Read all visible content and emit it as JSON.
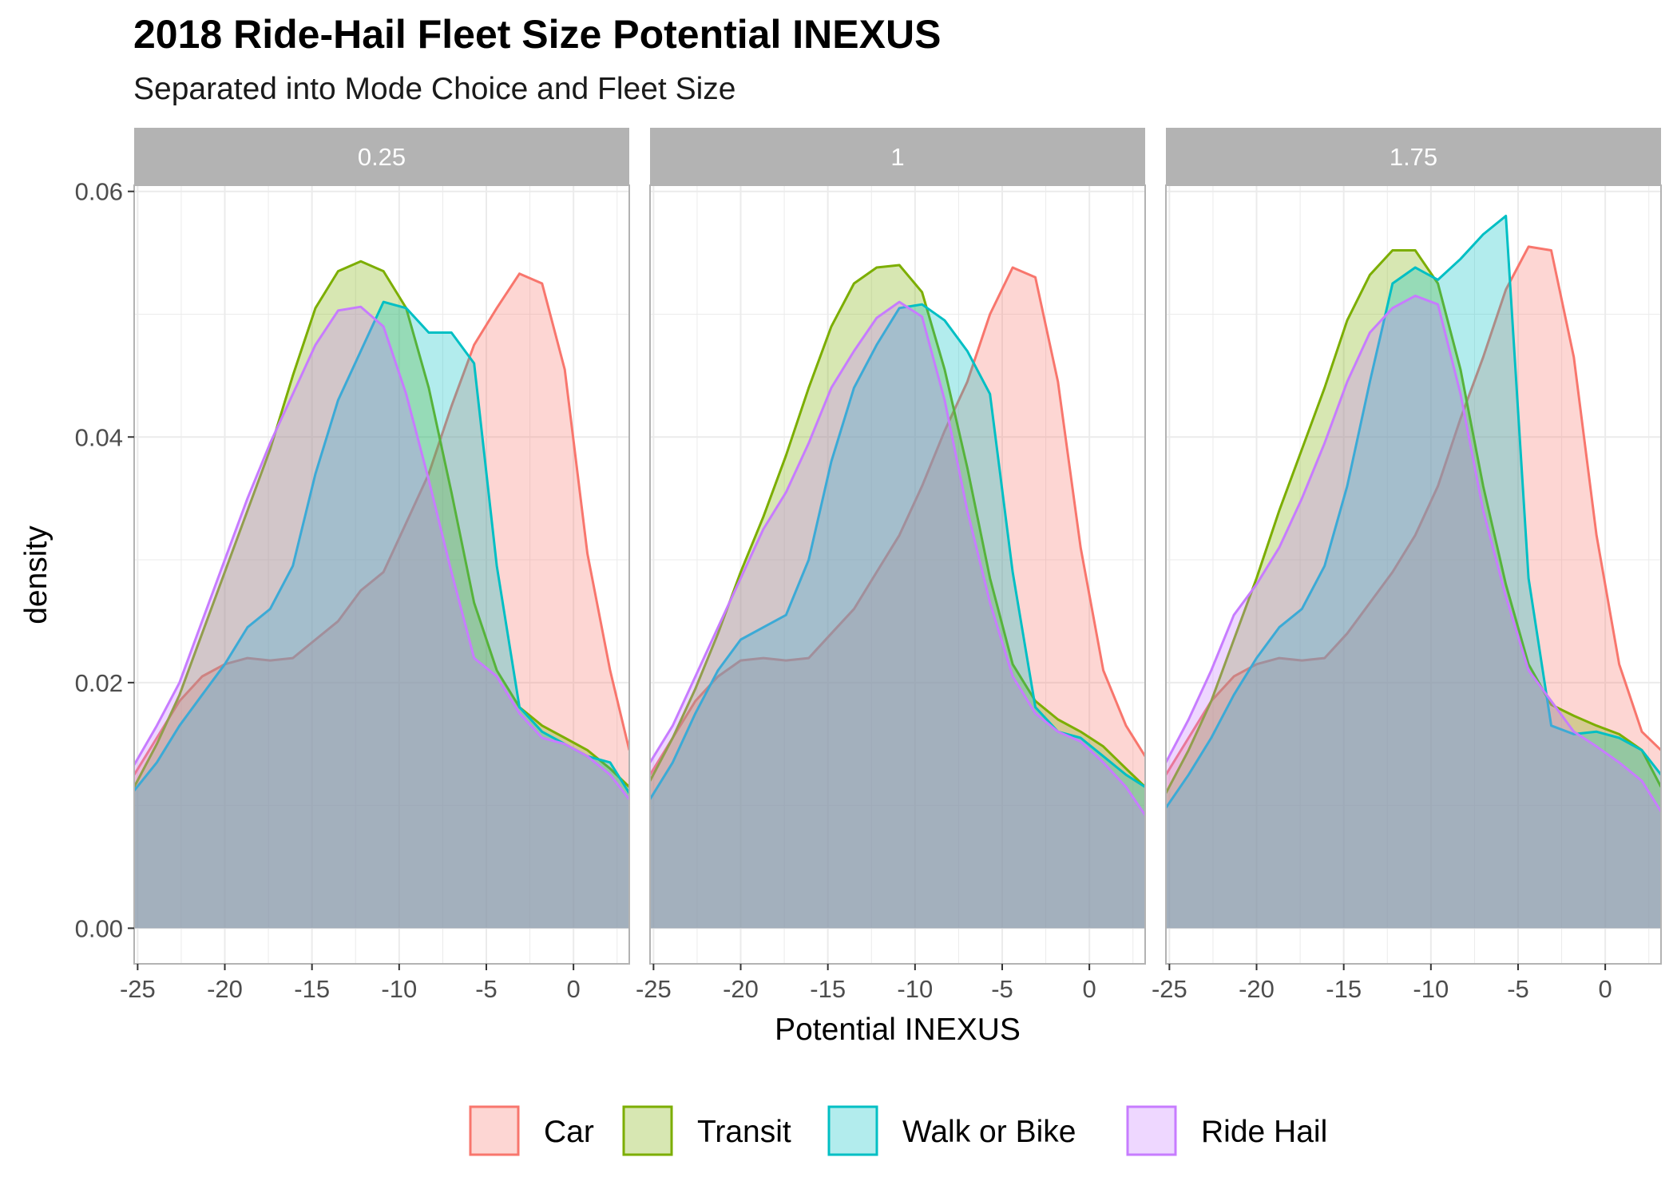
{
  "colors": {
    "Car": "#F8766D",
    "Transit": "#7CAE00",
    "Walk or Bike": "#00BFC4",
    "Ride Hail": "#C77CFF",
    "strip_bg": "#B3B3B3",
    "grid": "#EBEBEB",
    "panel_border": "#B3B3B3"
  },
  "chart_data": {
    "type": "area",
    "title": "2018 Ride-Hail Fleet Size Potential INEXUS",
    "subtitle": "Separated into Mode Choice and Fleet Size",
    "xlabel": "Potential INEXUS",
    "ylabel": "density",
    "xlim": [
      -25.2,
      3.2
    ],
    "ylim": [
      -0.0029,
      0.0605
    ],
    "x_ticks": [
      -25,
      -20,
      -15,
      -10,
      -5,
      0
    ],
    "x_tick_labels": [
      "-25",
      "-20",
      "-15",
      "-10",
      "-5",
      "0"
    ],
    "y_ticks": [
      0,
      0.02,
      0.04,
      0.06
    ],
    "y_tick_labels": [
      "0.00",
      "0.02",
      "0.04",
      "0.06"
    ],
    "legend": {
      "position": "bottom",
      "entries": [
        "Car",
        "Transit",
        "Walk or Bike",
        "Ride Hail"
      ]
    },
    "x": [
      -25.2,
      -23.9,
      -22.6,
      -21.3,
      -20.0,
      -18.7,
      -17.4,
      -16.1,
      -14.8,
      -13.5,
      -12.2,
      -10.9,
      -9.6,
      -8.3,
      -7.0,
      -5.7,
      -4.4,
      -3.1,
      -1.8,
      -0.5,
      0.8,
      2.1,
      3.2
    ],
    "panels": [
      {
        "label": "0.25",
        "series": [
          {
            "name": "Car",
            "values": [
              0.0125,
              0.0155,
              0.0185,
              0.0205,
              0.0215,
              0.022,
              0.0218,
              0.022,
              0.0235,
              0.025,
              0.0275,
              0.029,
              0.033,
              0.037,
              0.0425,
              0.0475,
              0.0505,
              0.0533,
              0.0525,
              0.0455,
              0.0305,
              0.021,
              0.0145
            ]
          },
          {
            "name": "Transit",
            "values": [
              0.0115,
              0.015,
              0.019,
              0.024,
              0.029,
              0.034,
              0.039,
              0.045,
              0.0505,
              0.0535,
              0.0543,
              0.0535,
              0.0505,
              0.044,
              0.0355,
              0.0265,
              0.021,
              0.018,
              0.0165,
              0.0155,
              0.0145,
              0.013,
              0.0115
            ]
          },
          {
            "name": "Walk or Bike",
            "values": [
              0.0112,
              0.0135,
              0.0165,
              0.019,
              0.0215,
              0.0245,
              0.026,
              0.0295,
              0.037,
              0.043,
              0.047,
              0.051,
              0.0505,
              0.0485,
              0.0485,
              0.046,
              0.0295,
              0.018,
              0.016,
              0.015,
              0.014,
              0.0135,
              0.011
            ]
          },
          {
            "name": "Ride Hail",
            "values": [
              0.0133,
              0.0165,
              0.02,
              0.025,
              0.03,
              0.035,
              0.0395,
              0.0435,
              0.0475,
              0.0503,
              0.0506,
              0.049,
              0.0435,
              0.0365,
              0.029,
              0.022,
              0.0205,
              0.0175,
              0.0155,
              0.015,
              0.014,
              0.0125,
              0.0105
            ]
          }
        ]
      },
      {
        "label": "1",
        "series": [
          {
            "name": "Car",
            "values": [
              0.0125,
              0.0155,
              0.0185,
              0.0205,
              0.0218,
              0.022,
              0.0218,
              0.022,
              0.024,
              0.026,
              0.029,
              0.032,
              0.036,
              0.0405,
              0.0445,
              0.05,
              0.0538,
              0.053,
              0.0445,
              0.031,
              0.021,
              0.0165,
              0.014
            ]
          },
          {
            "name": "Transit",
            "values": [
              0.012,
              0.0155,
              0.0195,
              0.024,
              0.029,
              0.0335,
              0.0385,
              0.044,
              0.049,
              0.0525,
              0.0538,
              0.054,
              0.0518,
              0.0455,
              0.0375,
              0.0285,
              0.0215,
              0.0185,
              0.017,
              0.016,
              0.0148,
              0.013,
              0.0115
            ]
          },
          {
            "name": "Walk or Bike",
            "values": [
              0.0105,
              0.0135,
              0.0175,
              0.021,
              0.0235,
              0.0245,
              0.0255,
              0.03,
              0.038,
              0.044,
              0.0475,
              0.0505,
              0.0508,
              0.0495,
              0.047,
              0.0435,
              0.029,
              0.018,
              0.016,
              0.0155,
              0.014,
              0.0125,
              0.0115
            ]
          },
          {
            "name": "Ride Hail",
            "values": [
              0.0135,
              0.0165,
              0.0205,
              0.0245,
              0.0285,
              0.0325,
              0.0355,
              0.0395,
              0.044,
              0.047,
              0.0497,
              0.051,
              0.0498,
              0.043,
              0.034,
              0.0265,
              0.0205,
              0.0175,
              0.016,
              0.0152,
              0.0135,
              0.0115,
              0.0092
            ]
          }
        ]
      },
      {
        "label": "1.75",
        "series": [
          {
            "name": "Car",
            "values": [
              0.0125,
              0.0155,
              0.0185,
              0.0205,
              0.0215,
              0.022,
              0.0218,
              0.022,
              0.024,
              0.0265,
              0.029,
              0.032,
              0.036,
              0.0415,
              0.0465,
              0.052,
              0.0555,
              0.0552,
              0.0465,
              0.032,
              0.0215,
              0.016,
              0.0145
            ]
          },
          {
            "name": "Transit",
            "values": [
              0.011,
              0.0145,
              0.0185,
              0.0235,
              0.0285,
              0.034,
              0.039,
              0.044,
              0.0495,
              0.0532,
              0.0552,
              0.0552,
              0.0525,
              0.0455,
              0.036,
              0.028,
              0.0215,
              0.0182,
              0.0173,
              0.0165,
              0.0158,
              0.0145,
              0.0115
            ]
          },
          {
            "name": "Walk or Bike",
            "values": [
              0.0098,
              0.0125,
              0.0155,
              0.019,
              0.022,
              0.0245,
              0.026,
              0.0295,
              0.036,
              0.0445,
              0.0525,
              0.0538,
              0.0528,
              0.0545,
              0.0565,
              0.058,
              0.0285,
              0.0165,
              0.0158,
              0.016,
              0.0155,
              0.0145,
              0.0125
            ]
          },
          {
            "name": "Ride Hail",
            "values": [
              0.0135,
              0.017,
              0.021,
              0.0255,
              0.028,
              0.031,
              0.035,
              0.0395,
              0.0445,
              0.0485,
              0.0505,
              0.0515,
              0.0508,
              0.0435,
              0.034,
              0.027,
              0.021,
              0.0185,
              0.016,
              0.0148,
              0.0135,
              0.012,
              0.0095
            ]
          }
        ]
      }
    ]
  }
}
